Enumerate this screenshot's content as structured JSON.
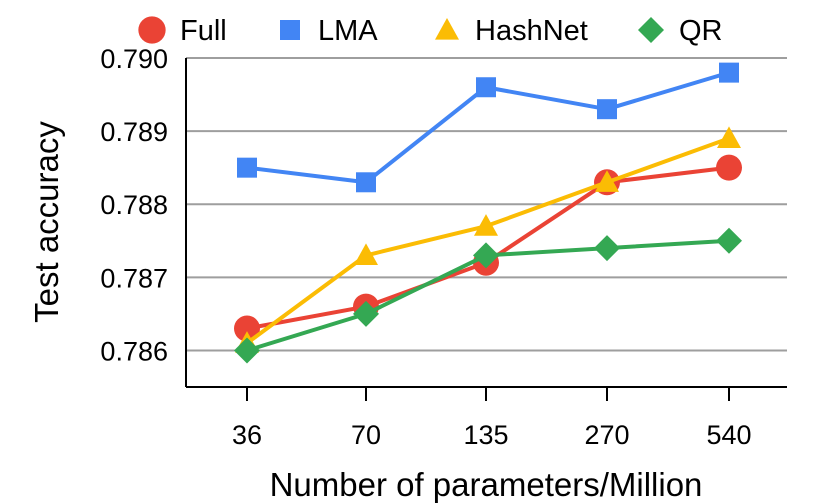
{
  "chart_data": {
    "type": "line",
    "title": "",
    "xlabel": "Number of parameters/Million",
    "ylabel": "Test accuracy",
    "categories": [
      "36",
      "70",
      "135",
      "270",
      "540"
    ],
    "ylim": [
      0.7855,
      0.79
    ],
    "yticks": [
      "0.786",
      "0.787",
      "0.788",
      "0.789",
      "0.790"
    ],
    "grid": "horizontal",
    "legend_position": "top",
    "series": [
      {
        "name": "Full",
        "marker": "circle",
        "color": "#ea4335",
        "values": [
          0.7863,
          0.7866,
          0.7872,
          0.7883,
          0.7885
        ]
      },
      {
        "name": "LMA",
        "marker": "square",
        "color": "#4285f4",
        "values": [
          0.7885,
          0.7883,
          0.7896,
          0.7893,
          0.7898
        ]
      },
      {
        "name": "HashNet",
        "marker": "triangle",
        "color": "#fbbc04",
        "values": [
          0.7861,
          0.7873,
          0.7877,
          0.7883,
          0.7889
        ]
      },
      {
        "name": "QR",
        "marker": "diamond",
        "color": "#34a853",
        "values": [
          0.786,
          0.7865,
          0.7873,
          0.7874,
          0.7875
        ]
      }
    ]
  }
}
